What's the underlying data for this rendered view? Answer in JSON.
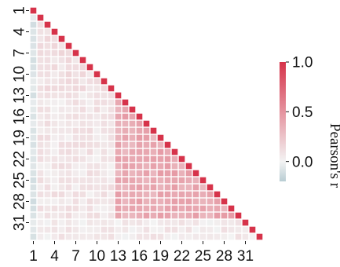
{
  "chart_data": {
    "type": "heatmap",
    "shape": "lower-triangular",
    "size": 33,
    "x_tick_labels": [
      "1",
      "4",
      "7",
      "10",
      "13",
      "16",
      "19",
      "22",
      "25",
      "28",
      "31"
    ],
    "y_tick_labels": [
      "1",
      "4",
      "7",
      "10",
      "13",
      "16",
      "19",
      "22",
      "25",
      "28",
      "31"
    ],
    "tick_positions": [
      1,
      4,
      7,
      10,
      13,
      16,
      19,
      22,
      25,
      28,
      31
    ],
    "colorbar": {
      "label": "Pearson's r",
      "range": [
        -0.2,
        1.0
      ],
      "ticks": [
        0.0,
        0.5,
        1.0
      ],
      "tick_labels": [
        "0.0",
        "0.5",
        "1.0"
      ],
      "cmap_colors": {
        "low": "#b9cdd3",
        "mid": "#f3f3f3",
        "high": "#d6334a"
      }
    },
    "cell_values_description": "Lower-triangular correlation matrix; diagonal r = 1.0; weak correlations (about -0.1 to 0.2) for variables 1-12, moderate correlations (about 0.3 to 0.5) among variables 13-30, weak correlations for variables 31-33."
  }
}
